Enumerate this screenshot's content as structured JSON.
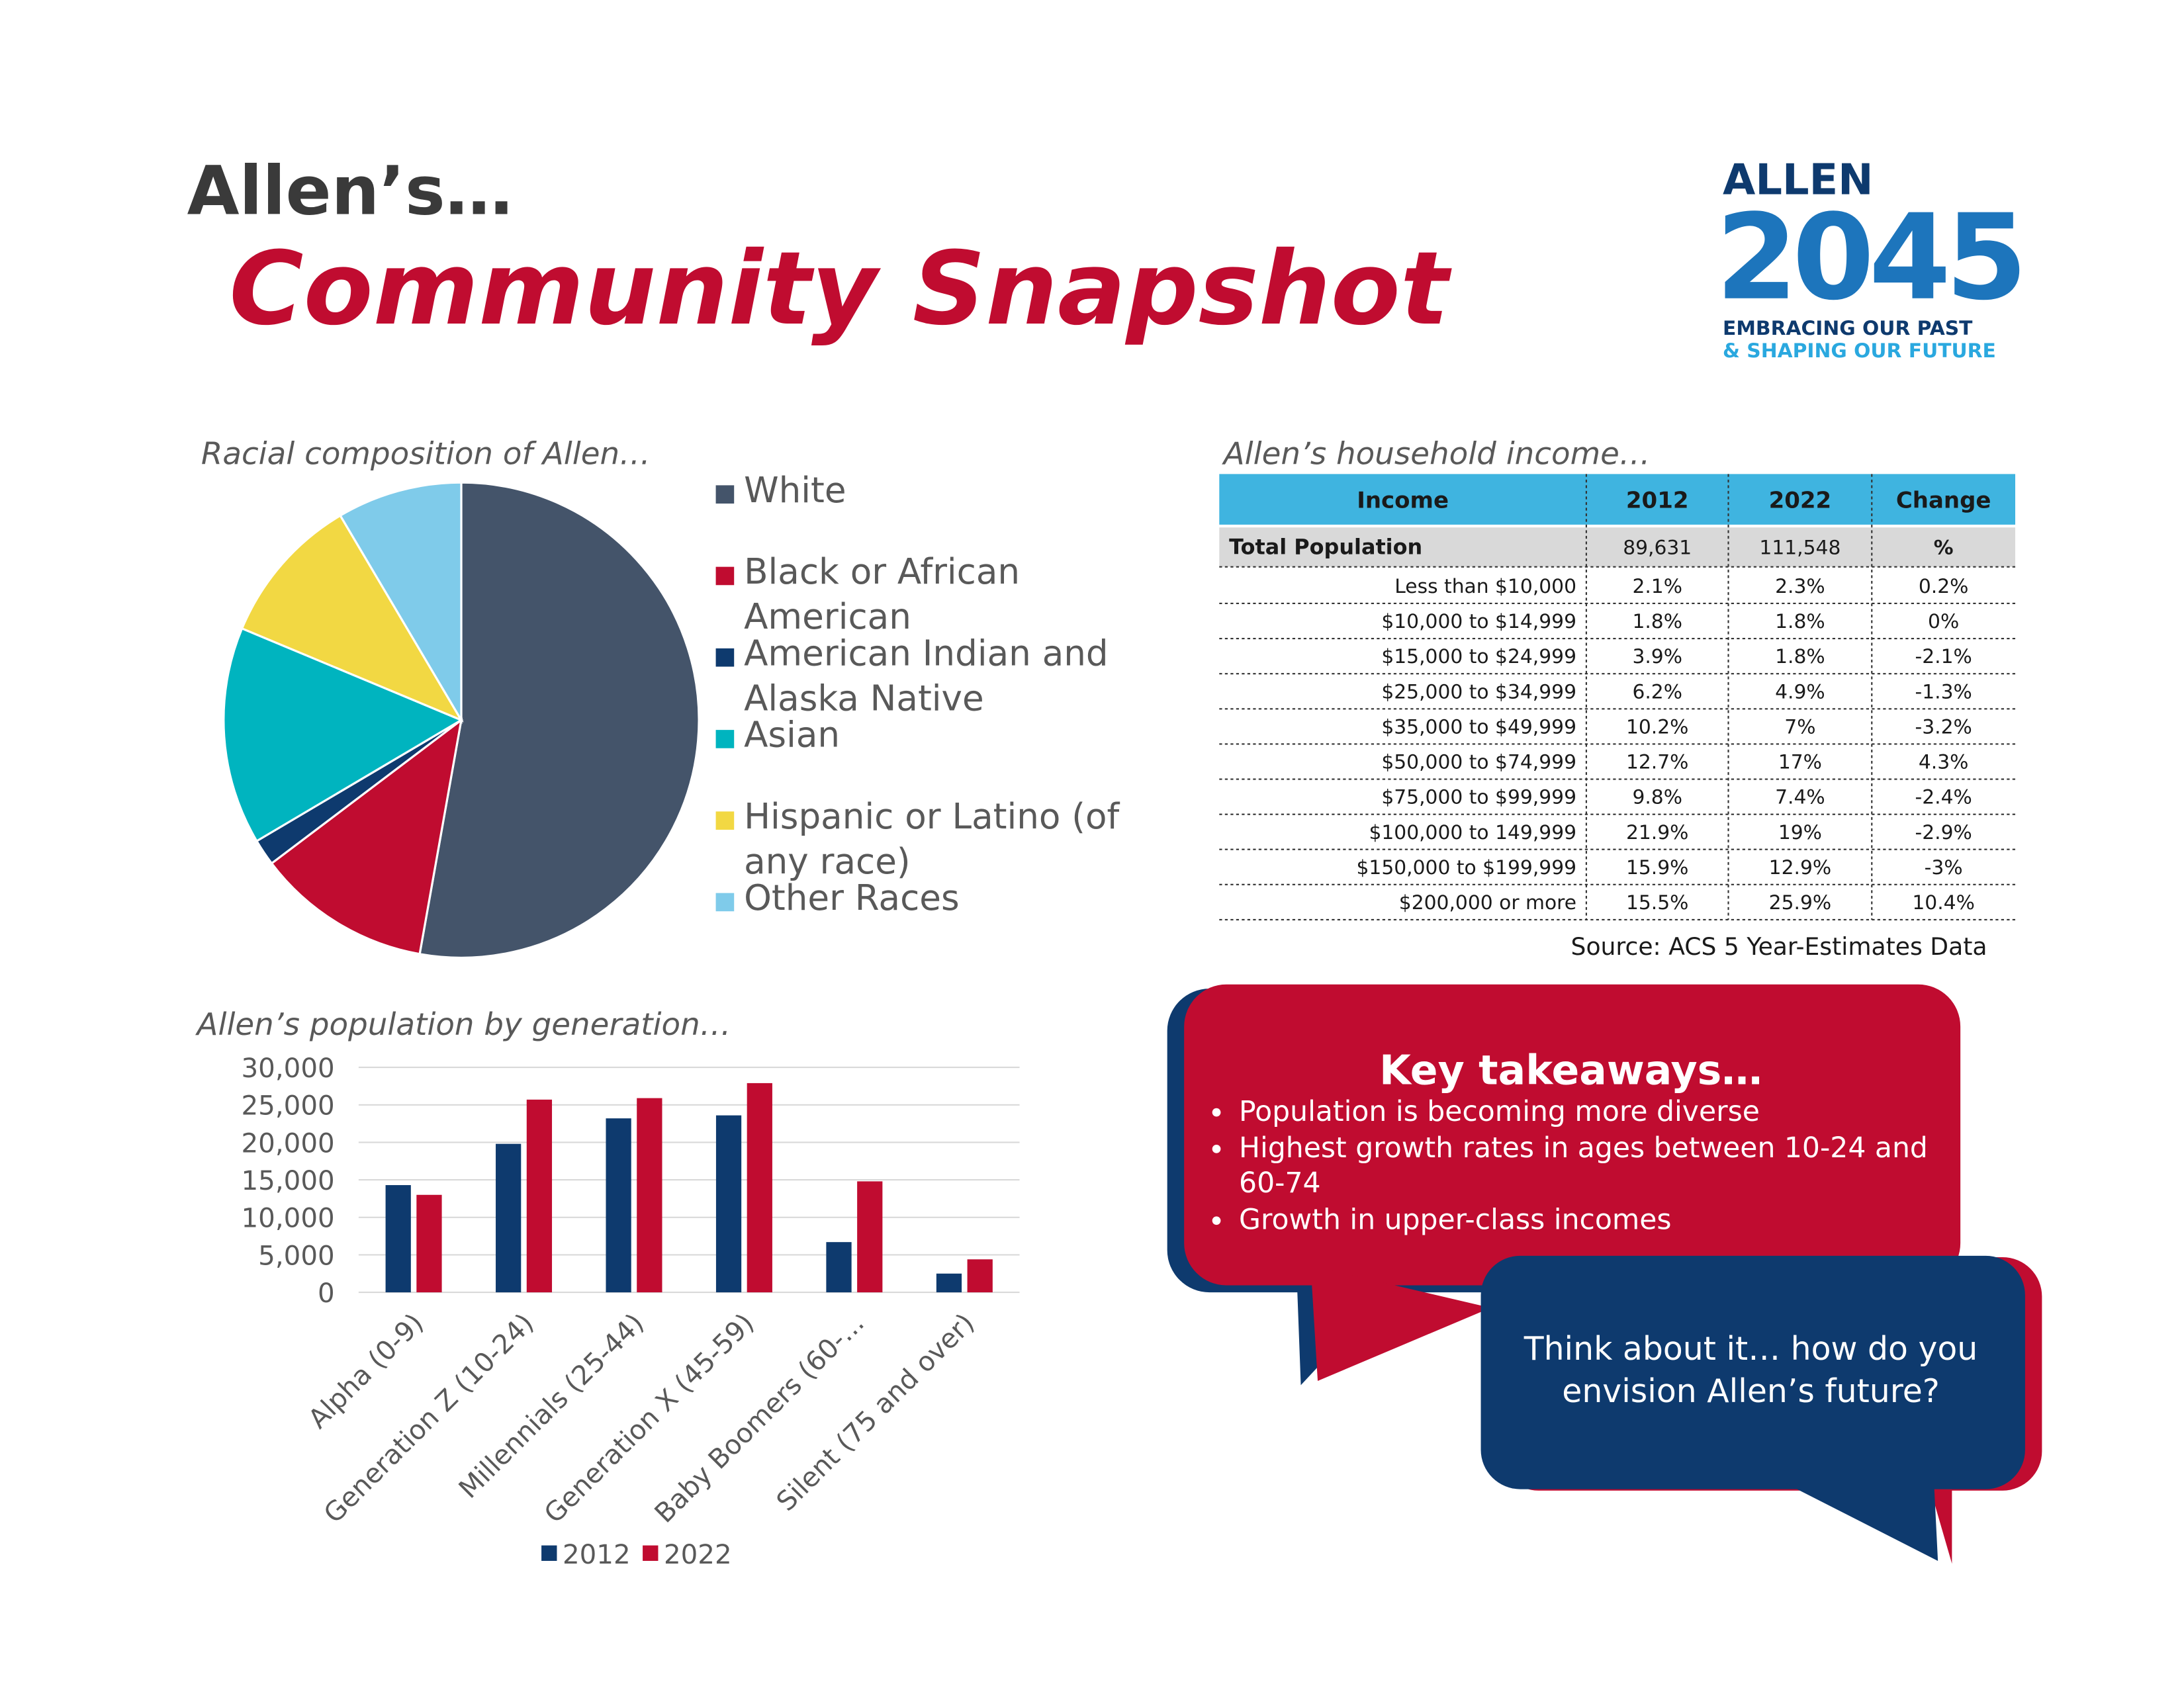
{
  "header": {
    "kicker": "Allen’s…",
    "title": "Community Snapshot"
  },
  "logo": {
    "name": "ALLEN",
    "year": "2045",
    "tagline": [
      "EMBRACING OUR PAST",
      "& SHAPING OUR FUTURE"
    ]
  },
  "chart_data": [
    {
      "type": "pie",
      "title": "Racial composition of Allen…",
      "categories": [
        "White",
        "Black or African American",
        "American Indian and Alaska Native",
        "Asian",
        "Hispanic or Latino (of any race)",
        "Other Races"
      ],
      "values": [
        52.8,
        11.9,
        1.8,
        14.8,
        10.2,
        8.5
      ],
      "colors": [
        "#44546a",
        "#c00c30",
        "#0e3a6e",
        "#00b4bf",
        "#f2d843",
        "#7fcbea"
      ]
    },
    {
      "type": "bar",
      "title": "Allen’s population by generation…",
      "categories": [
        "Alpha (0-9)",
        "Generation Z (10-24)",
        "Millennials (25-44)",
        "Generation X (45-59)",
        "Baby Boomers (60-...",
        "Silent (75 and over)"
      ],
      "series": [
        {
          "name": "2012",
          "color": "#0e3a6e",
          "values": [
            14300,
            19800,
            23200,
            23600,
            6700,
            2500
          ]
        },
        {
          "name": "2022",
          "color": "#c00c30",
          "values": [
            13000,
            25700,
            25900,
            27900,
            14800,
            4400
          ]
        }
      ],
      "ylim": [
        0,
        30000
      ],
      "yticks": [
        0,
        {
          "value": 5000,
          "label": "5,000"
        },
        {
          "value": 10000,
          "label": "10,000"
        },
        {
          "value": 15000,
          "label": "15,000"
        },
        {
          "value": 20000,
          "label": "20,000"
        },
        {
          "value": 25000,
          "label": "25,000"
        },
        {
          "value": 30000,
          "label": "30,000"
        }
      ],
      "grid": true
    }
  ],
  "table": {
    "title": "Allen’s household income…",
    "header": [
      "Income",
      "2012",
      "2022",
      "Change"
    ],
    "rows": [
      [
        "Total Population",
        "89,631",
        "111,548",
        "%"
      ],
      [
        "Less than $10,000",
        "2.1%",
        "2.3%",
        "0.2%"
      ],
      [
        "$10,000 to $14,999",
        "1.8%",
        "1.8%",
        "0%"
      ],
      [
        "$15,000 to $24,999",
        "3.9%",
        "1.8%",
        "-2.1%"
      ],
      [
        "$25,000 to $34,999",
        "6.2%",
        "4.9%",
        "-1.3%"
      ],
      [
        "$35,000 to $49,999",
        "10.2%",
        "7%",
        "-3.2%"
      ],
      [
        "$50,000 to $74,999",
        "12.7%",
        "17%",
        "4.3%"
      ],
      [
        "$75,000 to $99,999",
        "9.8%",
        "7.4%",
        "-2.4%"
      ],
      [
        "$100,000 to 149,999",
        "21.9%",
        "19%",
        "-2.9%"
      ],
      [
        "$150,000 to $199,999",
        "15.9%",
        "12.9%",
        "-3%"
      ],
      [
        "$200,000 or more",
        "15.5%",
        "25.9%",
        "10.4%"
      ]
    ],
    "source": "Source: ACS 5 Year-Estimates Data"
  },
  "takeaways": {
    "title": "Key takeaways…",
    "items": [
      "Population is becoming more diverse",
      "Highest growth rates in ages between 10-24 and 60-74",
      "Growth in upper-class incomes"
    ]
  },
  "prompt": "Think about it… how do you envision Allen’s future?"
}
